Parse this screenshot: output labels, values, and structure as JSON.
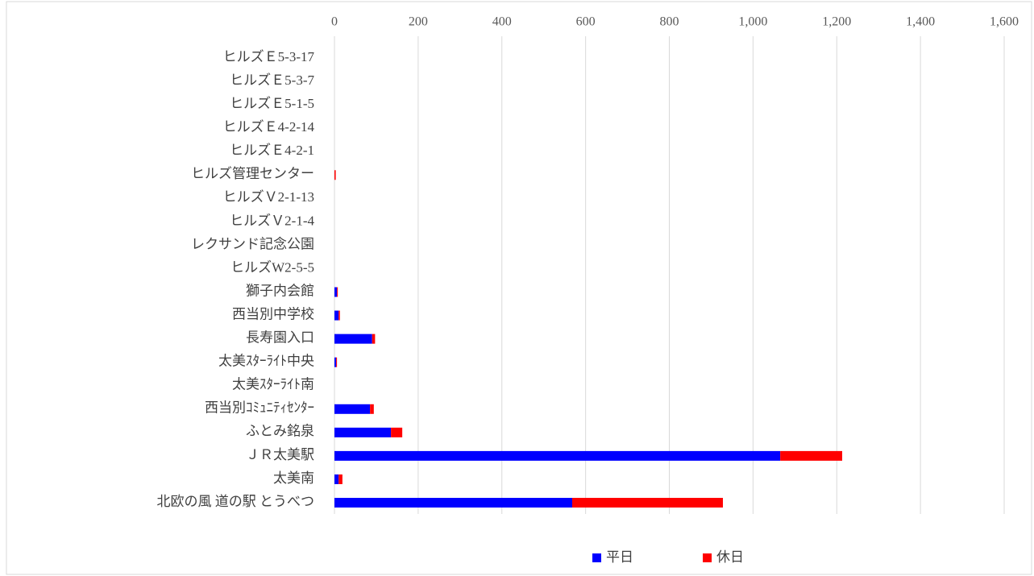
{
  "chart_data": {
    "type": "stacked-barh",
    "categories": [
      "ヒルズＥ5-3-17",
      "ヒルズＥ5-3-7",
      "ヒルズＥ5-1-5",
      "ヒルズＥ4-2-14",
      "ヒルズＥ4-2-1",
      "ヒルズ管理センター",
      "ヒルズＶ2-1-13",
      "ヒルズＶ2-1-4",
      "レクサンド記念公園",
      "ヒルズW2-5-5",
      "獅子内会館",
      "西当別中学校",
      "長寿園入口",
      "太美ｽﾀｰﾗｲﾄ中央",
      "太美ｽﾀｰﾗｲﾄ南",
      "西当別ｺﾐｭﾆﾃｨｾﾝﾀｰ",
      "ふとみ銘泉",
      "ＪＲ太美駅",
      "太美南",
      "北欧の風 道の駅 とうべつ"
    ],
    "series": [
      {
        "name": "平日",
        "color": "#0000ff",
        "values": [
          0,
          0,
          0,
          0,
          0,
          0,
          0,
          0,
          0,
          0,
          6,
          10,
          90,
          4,
          0,
          85,
          135,
          1065,
          10,
          568
        ]
      },
      {
        "name": "休日",
        "color": "#ff0000",
        "values": [
          0,
          0,
          0,
          0,
          0,
          3,
          0,
          0,
          0,
          0,
          2,
          3,
          7,
          2,
          0,
          9,
          27,
          148,
          9,
          360
        ]
      }
    ],
    "xlim": [
      0,
      1600
    ],
    "xticks": [
      0,
      200,
      400,
      600,
      800,
      {
        "value": 1000,
        "label": "1,000"
      },
      {
        "value": 1200,
        "label": "1,200"
      },
      {
        "value": 1400,
        "label": "1,400"
      },
      {
        "value": 1600,
        "label": "1,600"
      }
    ],
    "grid": true,
    "legend": "bottom"
  }
}
